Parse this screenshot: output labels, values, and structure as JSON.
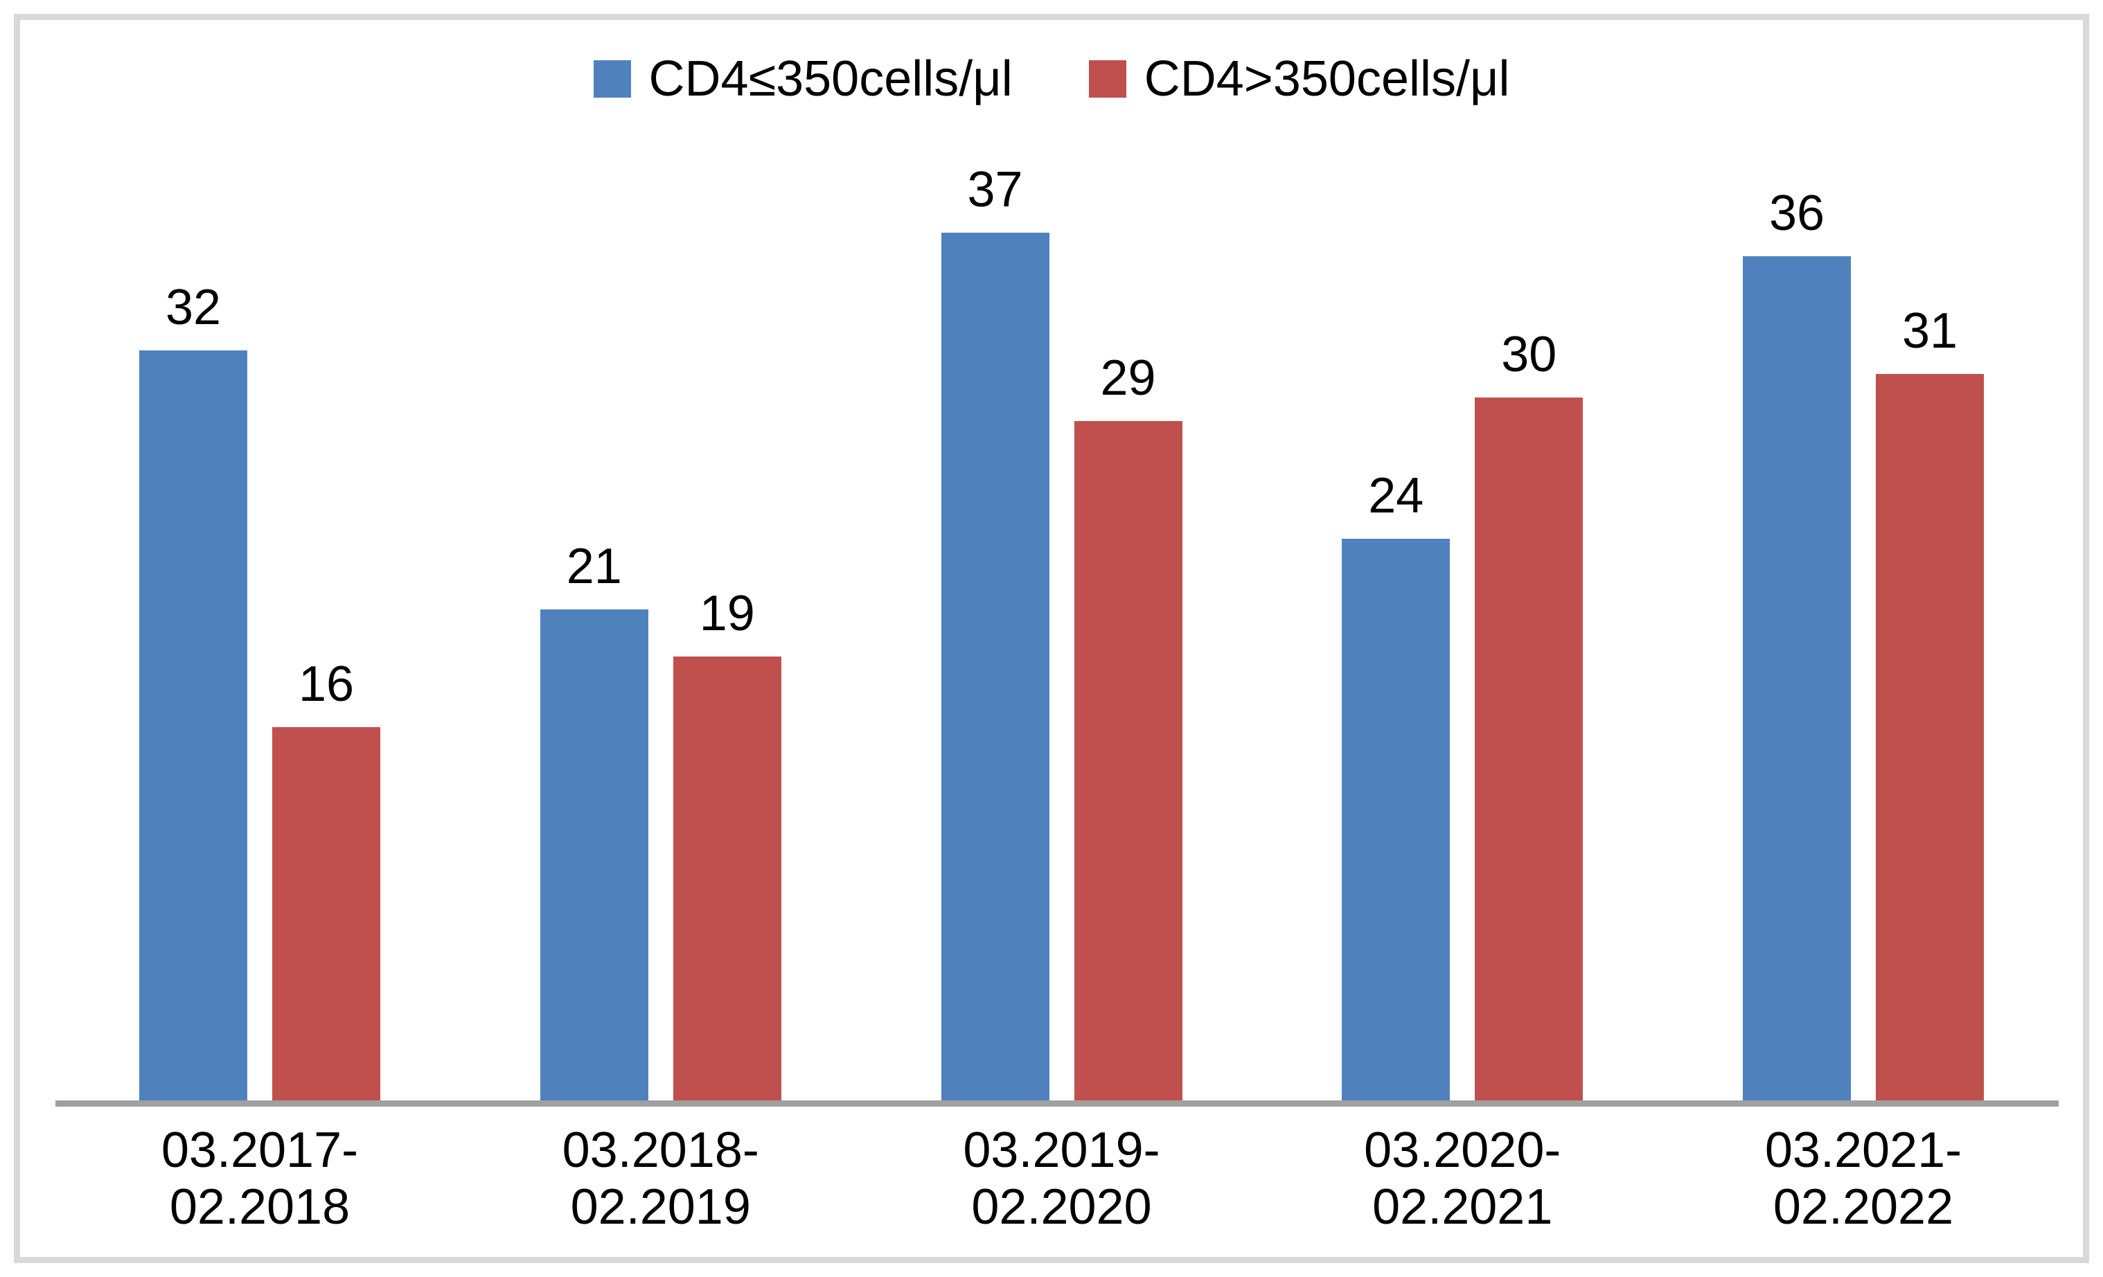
{
  "chart_data": {
    "type": "bar",
    "title": "",
    "xlabel": "",
    "ylabel": "",
    "ylim": [
      0,
      40
    ],
    "grid": false,
    "legend_position": "top-center",
    "value_labels_shown": true,
    "categories": [
      {
        "line1": "03.2017-",
        "line2": "02.2018"
      },
      {
        "line1": "03.2018-",
        "line2": "02.2019"
      },
      {
        "line1": "03.2019-",
        "line2": "02.2020"
      },
      {
        "line1": "03.2020-",
        "line2": "02.2021"
      },
      {
        "line1": "03.2021-",
        "line2": "02.2022"
      }
    ],
    "series": [
      {
        "name": "CD4≤350cells/μl",
        "color": "#4F81BD",
        "values": [
          32,
          21,
          37,
          24,
          36
        ]
      },
      {
        "name": "CD4>350cells/μl",
        "color": "#C0504D",
        "values": [
          16,
          19,
          29,
          30,
          31
        ]
      }
    ],
    "colors": {
      "axis_line": "#A0A0A0",
      "frame_border": "#D9D9D9",
      "text": "#000000"
    }
  }
}
